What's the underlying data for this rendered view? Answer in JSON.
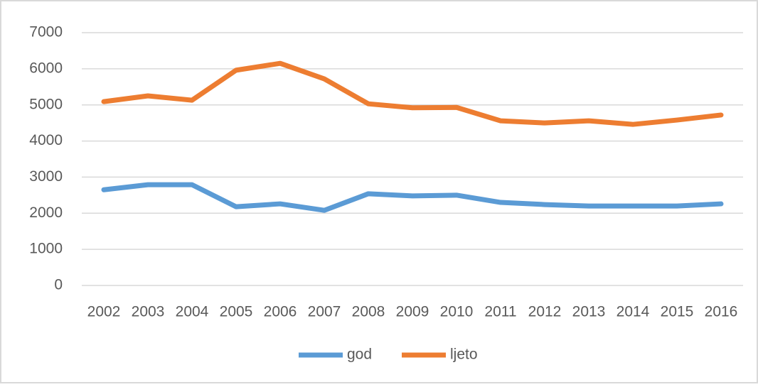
{
  "chart_data": {
    "type": "line",
    "categories": [
      "2002",
      "2003",
      "2004",
      "2005",
      "2006",
      "2007",
      "2008",
      "2009",
      "2010",
      "2011",
      "2012",
      "2013",
      "2014",
      "2015",
      "2016"
    ],
    "series": [
      {
        "name": "god",
        "color": "#5b9bd5",
        "values": [
          2650,
          2790,
          2790,
          2180,
          2260,
          2080,
          2540,
          2480,
          2500,
          2300,
          2240,
          2200,
          2200,
          2200,
          2260
        ]
      },
      {
        "name": "ljeto",
        "color": "#ed7d31",
        "values": [
          5090,
          5250,
          5130,
          5960,
          6150,
          5720,
          5030,
          4920,
          4930,
          4560,
          4500,
          4560,
          4460,
          4580,
          4720
        ]
      }
    ],
    "ylim": [
      0,
      7000
    ],
    "yticks": [
      0,
      1000,
      2000,
      3000,
      4000,
      5000,
      6000,
      7000
    ],
    "grid": true,
    "legend": "bottom"
  }
}
